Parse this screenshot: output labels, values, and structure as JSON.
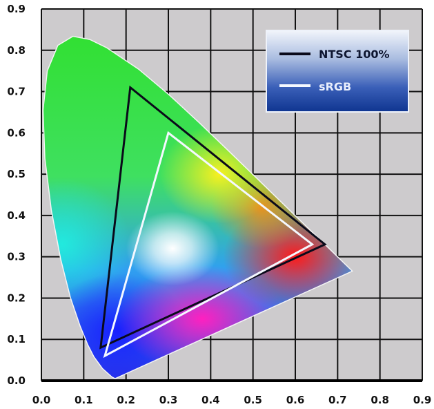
{
  "chart_data": {
    "type": "line",
    "title": "",
    "xlabel": "",
    "ylabel": "",
    "xlim": [
      0,
      0.9
    ],
    "ylim": [
      0,
      0.9
    ],
    "grid": true,
    "background_color": "#cdcbcd",
    "x_ticks": [
      "0.0",
      "0.1",
      "0.2",
      "0.3",
      "0.4",
      "0.5",
      "0.6",
      "0.7",
      "0.8",
      "0.9"
    ],
    "y_ticks": [
      "0.0",
      "0.1",
      "0.2",
      "0.3",
      "0.4",
      "0.5",
      "0.6",
      "0.7",
      "0.8",
      "0.9"
    ],
    "spectral_locus": [
      [
        0.1741,
        0.005
      ],
      [
        0.1666,
        0.0089
      ],
      [
        0.144,
        0.0297
      ],
      [
        0.1241,
        0.0578
      ],
      [
        0.1096,
        0.0868
      ],
      [
        0.0913,
        0.1327
      ],
      [
        0.0687,
        0.2007
      ],
      [
        0.0454,
        0.295
      ],
      [
        0.0235,
        0.4127
      ],
      [
        0.0082,
        0.5384
      ],
      [
        0.0039,
        0.6548
      ],
      [
        0.0139,
        0.7502
      ],
      [
        0.0389,
        0.812
      ],
      [
        0.0743,
        0.8338
      ],
      [
        0.1142,
        0.8262
      ],
      [
        0.1547,
        0.8059
      ],
      [
        0.2296,
        0.7543
      ],
      [
        0.3016,
        0.6923
      ],
      [
        0.3731,
        0.6245
      ],
      [
        0.4441,
        0.5547
      ],
      [
        0.5125,
        0.4866
      ],
      [
        0.5752,
        0.4242
      ],
      [
        0.627,
        0.3725
      ],
      [
        0.6658,
        0.334
      ],
      [
        0.6915,
        0.3083
      ],
      [
        0.7347,
        0.2653
      ]
    ],
    "legend_position": "top-right",
    "series": [
      {
        "name": "NTSC 100%",
        "color": "#0a0a1a",
        "points": [
          [
            0.67,
            0.33
          ],
          [
            0.21,
            0.71
          ],
          [
            0.14,
            0.08
          ]
        ]
      },
      {
        "name": "sRGB",
        "color": "#f4f8ff",
        "points": [
          [
            0.64,
            0.33
          ],
          [
            0.3,
            0.6
          ],
          [
            0.15,
            0.06
          ]
        ]
      }
    ]
  }
}
